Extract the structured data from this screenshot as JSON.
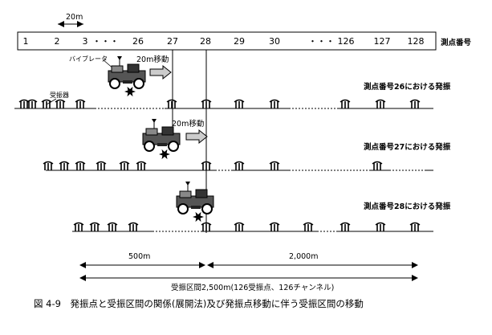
{
  "top_arrow_label": "20m",
  "stations": [
    "1",
    "2",
    "3",
    "26",
    "27",
    "28",
    "29",
    "30",
    "126",
    "127",
    "128"
  ],
  "ellipsis": "・・・",
  "ellipsis2": "・・・",
  "station_row_label": "測点番号",
  "vibrator_label": "バイブレータ",
  "move_label": "20m移動",
  "geophone_label": "受振器",
  "rows": [
    {
      "label": "測点番号26における発振"
    },
    {
      "label": "測点番号27における発振"
    },
    {
      "label": "測点番号28における発振"
    }
  ],
  "dist_left": "500m",
  "dist_right": "2,000m",
  "spread_label": "受振区間2,500m(126受振点、126チャンネル)",
  "caption": "図 4-9　発振点と受振区間の関係(展開法)及び発振点移動に伴う受振区間の移動"
}
